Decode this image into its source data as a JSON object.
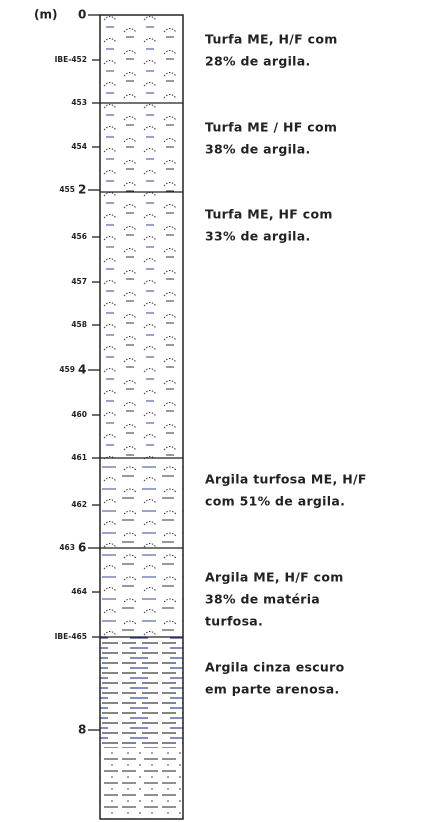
{
  "unit": "(m)",
  "ticks": [
    {
      "depth": "0"
    },
    {
      "sample": "IBE-452"
    },
    {
      "sample": "453"
    },
    {
      "sample": "454"
    },
    {
      "sample": "455",
      "depth": "2"
    },
    {
      "sample": "456"
    },
    {
      "sample": "457"
    },
    {
      "sample": "458"
    },
    {
      "sample": "459",
      "depth": "4"
    },
    {
      "sample": "460"
    },
    {
      "sample": "461"
    },
    {
      "sample": "462"
    },
    {
      "sample": "463",
      "depth": "6"
    },
    {
      "sample": "464"
    },
    {
      "sample": "IBE-465"
    },
    {
      "depth": "8"
    }
  ],
  "layers": [
    {
      "lines": [
        "Turfa ME, H/F com",
        "28% de argila."
      ]
    },
    {
      "lines": [
        "Turfa ME / HF com",
        "38% de argila."
      ]
    },
    {
      "lines": [
        "Turfa ME, HF com",
        "33% de argila."
      ]
    },
    {
      "lines": [
        "Argila turfosa ME, H/F",
        "com 51% de argila."
      ]
    },
    {
      "lines": [
        "Argila ME, H/F com",
        "38% de matéria",
        "turfosa."
      ]
    },
    {
      "lines": [
        "Argila cinza escuro",
        "em parte arenosa."
      ]
    }
  ]
}
